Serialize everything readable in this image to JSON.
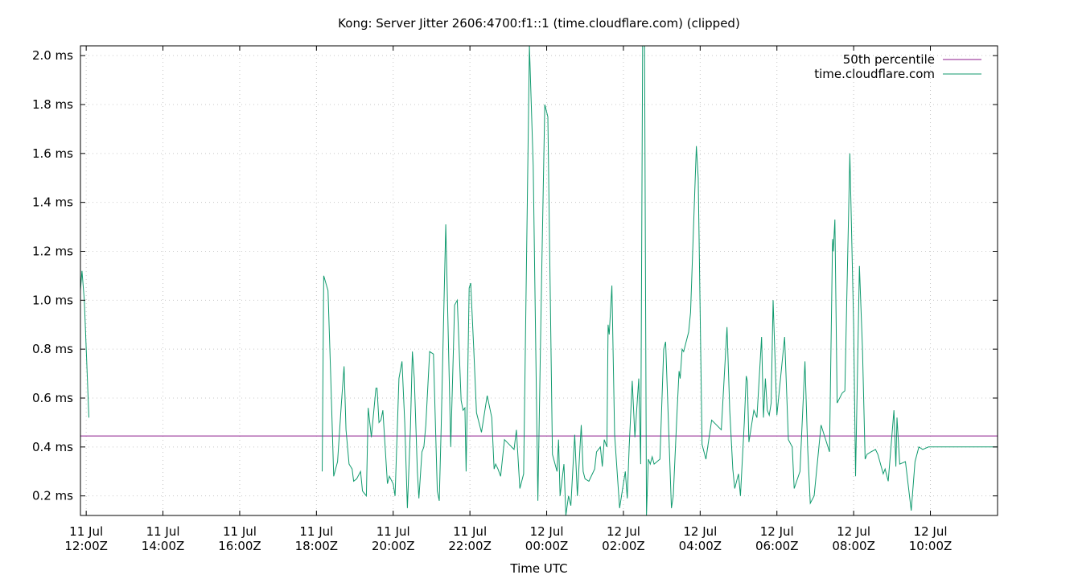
{
  "chart_data": {
    "type": "line",
    "title": "Kong: Server Jitter 2606:4700:f1::1 (time.cloudflare.com) (clipped)",
    "xlabel": "Time UTC",
    "ylabel": "",
    "x_unit": "hours since 11 Jul 11:50Z",
    "xlim": [
      0,
      23.9
    ],
    "ylim": [
      0.12,
      2.04
    ],
    "yticks": [
      0.2,
      0.4,
      0.6,
      0.8,
      1.0,
      1.2,
      1.4,
      1.6,
      1.8,
      2.0
    ],
    "ytick_labels": [
      "0.2 ms",
      "0.4 ms",
      "0.6 ms",
      "0.8 ms",
      "1.0 ms",
      "1.2 ms",
      "1.4 ms",
      "1.6 ms",
      "1.8 ms",
      "2.0 ms"
    ],
    "xticks": [
      {
        "pos": 0.15,
        "line1": "11 Jul",
        "line2": "12:00Z"
      },
      {
        "pos": 2.15,
        "line1": "11 Jul",
        "line2": "14:00Z"
      },
      {
        "pos": 4.15,
        "line1": "11 Jul",
        "line2": "16:00Z"
      },
      {
        "pos": 6.15,
        "line1": "11 Jul",
        "line2": "18:00Z"
      },
      {
        "pos": 8.15,
        "line1": "11 Jul",
        "line2": "20:00Z"
      },
      {
        "pos": 10.15,
        "line1": "11 Jul",
        "line2": "22:00Z"
      },
      {
        "pos": 12.15,
        "line1": "12 Jul",
        "line2": "00:00Z"
      },
      {
        "pos": 14.15,
        "line1": "12 Jul",
        "line2": "02:00Z"
      },
      {
        "pos": 16.15,
        "line1": "12 Jul",
        "line2": "04:00Z"
      },
      {
        "pos": 18.15,
        "line1": "12 Jul",
        "line2": "06:00Z"
      },
      {
        "pos": 20.15,
        "line1": "12 Jul",
        "line2": "08:00Z"
      },
      {
        "pos": 22.15,
        "line1": "12 Jul",
        "line2": "10:00Z"
      }
    ],
    "grid": true,
    "legend_position": "top-right",
    "series": [
      {
        "name": "50th percentile",
        "color": "#8b1a8b",
        "segments": [
          [
            [
              0,
              0.445
            ],
            [
              23.9,
              0.445
            ]
          ]
        ]
      },
      {
        "name": "time.cloudflare.com",
        "color": "#109a6e",
        "segments": [
          [
            [
              0.0,
              1.04
            ],
            [
              0.04,
              1.12
            ],
            [
              0.1,
              1.0
            ],
            [
              0.22,
              0.52
            ]
          ],
          [
            [
              6.3,
              0.3
            ],
            [
              6.34,
              1.1
            ],
            [
              6.45,
              1.04
            ],
            [
              6.52,
              0.7
            ],
            [
              6.6,
              0.28
            ],
            [
              6.7,
              0.34
            ],
            [
              6.8,
              0.58
            ],
            [
              6.87,
              0.73
            ],
            [
              6.92,
              0.47
            ],
            [
              7.0,
              0.33
            ],
            [
              7.08,
              0.31
            ],
            [
              7.12,
              0.26
            ],
            [
              7.2,
              0.27
            ],
            [
              7.3,
              0.3
            ],
            [
              7.35,
              0.22
            ],
            [
              7.45,
              0.2
            ],
            [
              7.5,
              0.56
            ],
            [
              7.58,
              0.44
            ],
            [
              7.7,
              0.64
            ],
            [
              7.73,
              0.64
            ],
            [
              7.78,
              0.5
            ],
            [
              7.83,
              0.51
            ],
            [
              7.88,
              0.55
            ],
            [
              8.0,
              0.25
            ],
            [
              8.05,
              0.28
            ],
            [
              8.15,
              0.25
            ],
            [
              8.2,
              0.2
            ],
            [
              8.3,
              0.68
            ],
            [
              8.38,
              0.75
            ],
            [
              8.45,
              0.5
            ],
            [
              8.52,
              0.15
            ],
            [
              8.6,
              0.48
            ],
            [
              8.65,
              0.79
            ],
            [
              8.7,
              0.68
            ],
            [
              8.78,
              0.3
            ],
            [
              8.82,
              0.19
            ],
            [
              8.9,
              0.38
            ],
            [
              8.95,
              0.4
            ],
            [
              9.0,
              0.49
            ],
            [
              9.1,
              0.79
            ],
            [
              9.2,
              0.78
            ],
            [
              9.3,
              0.22
            ],
            [
              9.35,
              0.18
            ],
            [
              9.4,
              0.48
            ],
            [
              9.52,
              1.31
            ],
            [
              9.65,
              0.4
            ],
            [
              9.75,
              0.98
            ],
            [
              9.82,
              1.0
            ],
            [
              9.92,
              0.59
            ],
            [
              9.97,
              0.55
            ],
            [
              10.02,
              0.56
            ],
            [
              10.05,
              0.3
            ],
            [
              10.13,
              1.05
            ],
            [
              10.17,
              1.07
            ],
            [
              10.25,
              0.8
            ],
            [
              10.32,
              0.54
            ],
            [
              10.45,
              0.46
            ],
            [
              10.6,
              0.61
            ],
            [
              10.72,
              0.52
            ],
            [
              10.78,
              0.31
            ],
            [
              10.82,
              0.33
            ],
            [
              10.88,
              0.31
            ],
            [
              10.95,
              0.28
            ],
            [
              11.05,
              0.43
            ],
            [
              11.3,
              0.39
            ],
            [
              11.36,
              0.47
            ],
            [
              11.45,
              0.23
            ],
            [
              11.55,
              0.29
            ],
            [
              11.7,
              2.04
            ],
            [
              11.8,
              1.55
            ],
            [
              11.92,
              0.18
            ],
            [
              12.02,
              1.1
            ],
            [
              12.1,
              1.8
            ],
            [
              12.18,
              1.75
            ],
            [
              12.3,
              0.37
            ],
            [
              12.42,
              0.3
            ],
            [
              12.46,
              0.43
            ],
            [
              12.5,
              0.2
            ],
            [
              12.6,
              0.33
            ],
            [
              12.65,
              0.12
            ],
            [
              12.72,
              0.2
            ],
            [
              12.78,
              0.16
            ],
            [
              12.88,
              0.45
            ],
            [
              12.95,
              0.2
            ],
            [
              13.05,
              0.49
            ],
            [
              13.1,
              0.3
            ],
            [
              13.15,
              0.27
            ],
            [
              13.25,
              0.26
            ],
            [
              13.4,
              0.31
            ],
            [
              13.45,
              0.38
            ],
            [
              13.55,
              0.4
            ],
            [
              13.6,
              0.32
            ],
            [
              13.65,
              0.43
            ],
            [
              13.72,
              0.4
            ],
            [
              13.75,
              0.9
            ],
            [
              13.78,
              0.86
            ],
            [
              13.85,
              1.06
            ],
            [
              13.92,
              0.45
            ],
            [
              14.05,
              0.15
            ],
            [
              14.15,
              0.25
            ],
            [
              14.2,
              0.3
            ],
            [
              14.25,
              0.19
            ],
            [
              14.3,
              0.4
            ],
            [
              14.38,
              0.67
            ],
            [
              14.45,
              0.44
            ],
            [
              14.55,
              0.68
            ],
            [
              14.6,
              0.33
            ],
            [
              14.65,
              2.04
            ],
            [
              14.7,
              2.04
            ],
            [
              14.75,
              0.12
            ],
            [
              14.8,
              0.35
            ],
            [
              14.85,
              0.33
            ],
            [
              14.9,
              0.36
            ],
            [
              14.95,
              0.33
            ],
            [
              15.1,
              0.35
            ],
            [
              15.2,
              0.8
            ],
            [
              15.25,
              0.83
            ],
            [
              15.4,
              0.15
            ],
            [
              15.45,
              0.2
            ],
            [
              15.55,
              0.55
            ],
            [
              15.6,
              0.71
            ],
            [
              15.63,
              0.68
            ],
            [
              15.68,
              0.8
            ],
            [
              15.72,
              0.79
            ],
            [
              15.85,
              0.87
            ],
            [
              15.9,
              0.95
            ],
            [
              16.05,
              1.63
            ],
            [
              16.1,
              1.5
            ],
            [
              16.2,
              0.41
            ],
            [
              16.3,
              0.35
            ],
            [
              16.45,
              0.51
            ],
            [
              16.7,
              0.47
            ],
            [
              16.85,
              0.89
            ],
            [
              16.92,
              0.55
            ],
            [
              17.0,
              0.31
            ],
            [
              17.05,
              0.23
            ],
            [
              17.15,
              0.29
            ],
            [
              17.2,
              0.2
            ],
            [
              17.3,
              0.5
            ],
            [
              17.35,
              0.69
            ],
            [
              17.38,
              0.67
            ],
            [
              17.42,
              0.42
            ],
            [
              17.55,
              0.55
            ],
            [
              17.63,
              0.52
            ],
            [
              17.75,
              0.85
            ],
            [
              17.8,
              0.52
            ],
            [
              17.85,
              0.68
            ],
            [
              17.9,
              0.55
            ],
            [
              17.95,
              0.53
            ],
            [
              18.0,
              0.58
            ],
            [
              18.05,
              1.0
            ],
            [
              18.15,
              0.53
            ],
            [
              18.35,
              0.85
            ],
            [
              18.45,
              0.43
            ],
            [
              18.55,
              0.4
            ],
            [
              18.6,
              0.23
            ],
            [
              18.75,
              0.3
            ],
            [
              18.88,
              0.75
            ],
            [
              18.95,
              0.4
            ],
            [
              19.02,
              0.17
            ],
            [
              19.12,
              0.2
            ],
            [
              19.3,
              0.49
            ],
            [
              19.38,
              0.45
            ],
            [
              19.52,
              0.38
            ],
            [
              19.6,
              1.25
            ],
            [
              19.62,
              1.2
            ],
            [
              19.66,
              1.33
            ],
            [
              19.72,
              0.58
            ],
            [
              19.85,
              0.62
            ],
            [
              19.92,
              0.63
            ],
            [
              20.05,
              1.6
            ],
            [
              20.15,
              0.9
            ],
            [
              20.2,
              0.28
            ],
            [
              20.3,
              1.14
            ],
            [
              20.38,
              0.8
            ],
            [
              20.45,
              0.35
            ],
            [
              20.5,
              0.37
            ],
            [
              20.6,
              0.38
            ],
            [
              20.72,
              0.39
            ],
            [
              20.78,
              0.37
            ],
            [
              20.92,
              0.29
            ],
            [
              20.97,
              0.31
            ],
            [
              21.05,
              0.26
            ],
            [
              21.2,
              0.55
            ],
            [
              21.25,
              0.32
            ],
            [
              21.28,
              0.52
            ],
            [
              21.35,
              0.33
            ],
            [
              21.5,
              0.34
            ],
            [
              21.65,
              0.14
            ],
            [
              21.75,
              0.34
            ],
            [
              21.85,
              0.4
            ],
            [
              21.95,
              0.39
            ],
            [
              22.1,
              0.4
            ],
            [
              23.9,
              0.4
            ]
          ]
        ]
      }
    ]
  }
}
